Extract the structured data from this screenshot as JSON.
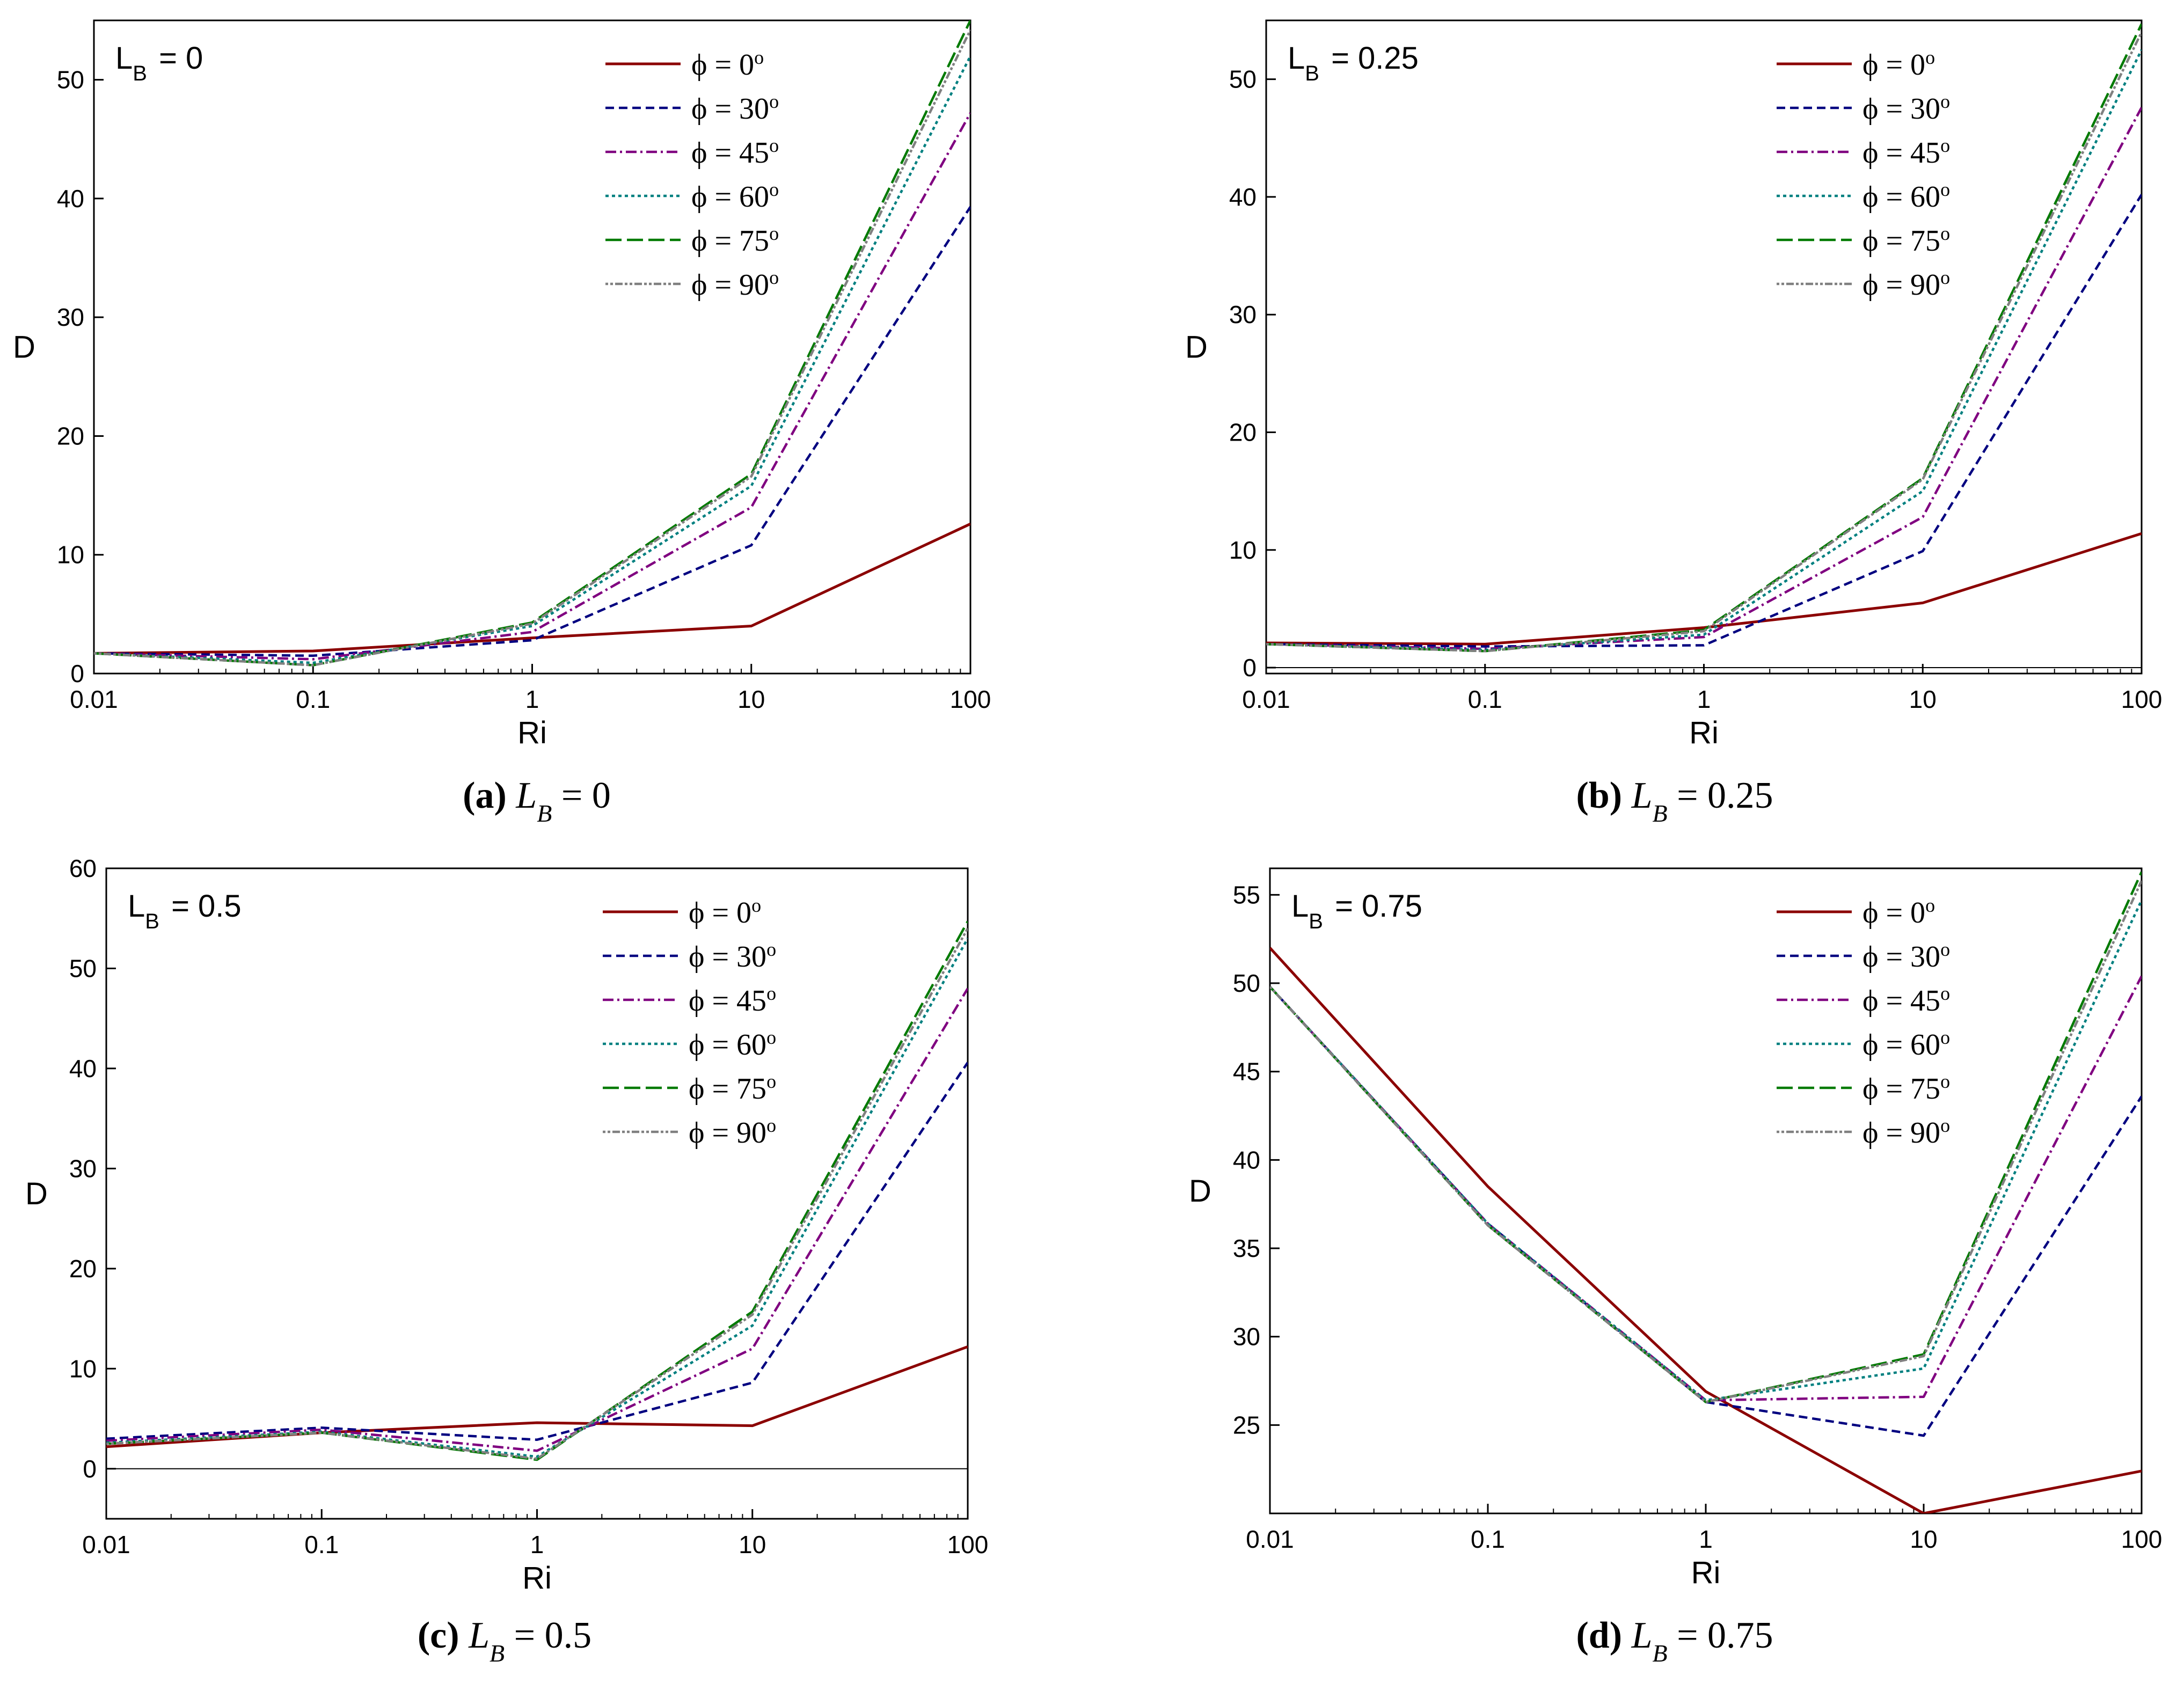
{
  "figure": {
    "series_style": [
      {
        "color": "#8b0000",
        "dash": ""
      },
      {
        "color": "#000080",
        "dash": "16,9"
      },
      {
        "color": "#800080",
        "dash": "20,7,4,7"
      },
      {
        "color": "#008080",
        "dash": "6,6"
      },
      {
        "color": "#007a00",
        "dash": "30,10"
      },
      {
        "color": "#808080",
        "dash": "5,4,5,4,14,4"
      }
    ]
  },
  "chart_data": [
    {
      "type": "line",
      "panel_tag_main": "L",
      "panel_tag_sub": "B",
      "panel_tag_value": "= 0",
      "caption_letter": "(a)",
      "caption_var": "L",
      "caption_sub": "B",
      "caption_value": "= 0",
      "xlabel": "Ri",
      "ylabel": "D",
      "xscale": "log",
      "x": [
        0.01,
        0.1,
        1,
        10,
        100
      ],
      "x_tick_labels": [
        "0.01",
        "0.1",
        "1",
        "10",
        "100"
      ],
      "ylim": [
        0,
        55
      ],
      "y_ticks": [
        0,
        10,
        20,
        30,
        40,
        50
      ],
      "y_tick_labels": [
        "0",
        "10",
        "20",
        "30",
        "40",
        "50"
      ],
      "legend_position": "top-right",
      "series": [
        {
          "name": "ϕ = 0°",
          "label_main": "ϕ = 0",
          "label_sup": "o",
          "values": [
            1.7,
            1.9,
            3.0,
            4.0,
            12.6
          ]
        },
        {
          "name": "ϕ = 30°",
          "label_main": "ϕ = 30",
          "label_sup": "o",
          "values": [
            1.7,
            1.5,
            2.8,
            10.8,
            39.3
          ]
        },
        {
          "name": "ϕ = 45°",
          "label_main": "ϕ = 45",
          "label_sup": "o",
          "values": [
            1.7,
            1.2,
            3.5,
            14.0,
            47.2
          ]
        },
        {
          "name": "ϕ = 60°",
          "label_main": "ϕ = 60",
          "label_sup": "o",
          "values": [
            1.7,
            0.9,
            4.0,
            15.8,
            52.0
          ]
        },
        {
          "name": "ϕ = 75°",
          "label_main": "ϕ = 75",
          "label_sup": "o",
          "values": [
            1.7,
            0.7,
            4.3,
            16.8,
            55.0
          ]
        },
        {
          "name": "ϕ = 90°",
          "label_main": "ϕ = 90",
          "label_sup": "o",
          "values": [
            1.7,
            0.7,
            4.2,
            16.6,
            54.2
          ]
        }
      ]
    },
    {
      "type": "line",
      "panel_tag_main": "L",
      "panel_tag_sub": "B",
      "panel_tag_value": "= 0.25",
      "caption_letter": "(b)",
      "caption_var": "L",
      "caption_sub": "B",
      "caption_value": "= 0.25",
      "xlabel": "Ri",
      "ylabel": "D",
      "xscale": "log",
      "x": [
        0.01,
        0.1,
        1,
        10,
        100
      ],
      "x_tick_labels": [
        "0.01",
        "0.1",
        "1",
        "10",
        "100"
      ],
      "ylim": [
        -0.5,
        55
      ],
      "y_ticks": [
        0,
        10,
        20,
        30,
        40,
        50
      ],
      "y_tick_labels": [
        "0",
        "10",
        "20",
        "30",
        "40",
        "50"
      ],
      "legend_position": "top-right",
      "series": [
        {
          "name": "ϕ = 0°",
          "label_main": "ϕ = 0",
          "label_sup": "o",
          "values": [
            2.1,
            2.0,
            3.4,
            5.5,
            11.4
          ]
        },
        {
          "name": "ϕ = 30°",
          "label_main": "ϕ = 30",
          "label_sup": "o",
          "values": [
            2.0,
            1.8,
            1.9,
            9.9,
            40.2
          ]
        },
        {
          "name": "ϕ = 45°",
          "label_main": "ϕ = 45",
          "label_sup": "o",
          "values": [
            2.0,
            1.6,
            2.6,
            12.8,
            47.6
          ]
        },
        {
          "name": "ϕ = 60°",
          "label_main": "ϕ = 60",
          "label_sup": "o",
          "values": [
            2.0,
            1.5,
            2.8,
            15.0,
            52.5
          ]
        },
        {
          "name": "ϕ = 75°",
          "label_main": "ϕ = 75",
          "label_sup": "o",
          "values": [
            2.0,
            1.4,
            3.2,
            16.1,
            54.7
          ]
        },
        {
          "name": "ϕ = 90°",
          "label_main": "ϕ = 90",
          "label_sup": "o",
          "values": [
            2.0,
            1.4,
            3.1,
            16.0,
            54.0
          ]
        }
      ]
    },
    {
      "type": "line",
      "panel_tag_main": "L",
      "panel_tag_sub": "B",
      "panel_tag_value": "= 0.5",
      "caption_letter": "(c)",
      "caption_var": "L",
      "caption_sub": "B",
      "caption_value": "= 0.5",
      "xlabel": "Ri",
      "ylabel": "D",
      "xscale": "log",
      "x": [
        0.01,
        0.1,
        1,
        10,
        100
      ],
      "x_tick_labels": [
        "0.01",
        "0.1",
        "1",
        "10",
        "100"
      ],
      "ylim": [
        -5,
        60
      ],
      "y_ticks": [
        0,
        10,
        20,
        30,
        40,
        50,
        60
      ],
      "y_tick_labels": [
        "0",
        "10",
        "20",
        "30",
        "40",
        "50",
        "60"
      ],
      "legend_position": "top-right",
      "series": [
        {
          "name": "ϕ = 0°",
          "label_main": "ϕ = 0",
          "label_sup": "o",
          "values": [
            2.2,
            3.6,
            4.6,
            4.3,
            12.2
          ]
        },
        {
          "name": "ϕ = 30°",
          "label_main": "ϕ = 30",
          "label_sup": "o",
          "values": [
            3.0,
            4.1,
            2.9,
            8.6,
            40.6
          ]
        },
        {
          "name": "ϕ = 45°",
          "label_main": "ϕ = 45",
          "label_sup": "o",
          "values": [
            2.8,
            3.9,
            1.8,
            12.0,
            48.0
          ]
        },
        {
          "name": "ϕ = 60°",
          "label_main": "ϕ = 60",
          "label_sup": "o",
          "values": [
            2.6,
            3.7,
            1.2,
            14.3,
            53.0
          ]
        },
        {
          "name": "ϕ = 75°",
          "label_main": "ϕ = 75",
          "label_sup": "o",
          "values": [
            2.5,
            3.6,
            0.9,
            15.7,
            54.7
          ]
        },
        {
          "name": "ϕ = 90°",
          "label_main": "ϕ = 90",
          "label_sup": "o",
          "values": [
            2.5,
            3.6,
            1.0,
            15.4,
            54.0
          ]
        }
      ]
    },
    {
      "type": "line",
      "panel_tag_main": "L",
      "panel_tag_sub": "B",
      "panel_tag_value": "= 0.75",
      "caption_letter": "(d)",
      "caption_var": "L",
      "caption_sub": "B",
      "caption_value": "= 0.75",
      "xlabel": "Ri",
      "ylabel": "D",
      "xscale": "log",
      "x": [
        0.01,
        0.1,
        1,
        10,
        100
      ],
      "x_tick_labels": [
        "0.01",
        "0.1",
        "1",
        "10",
        "100"
      ],
      "ylim": [
        20,
        56.5
      ],
      "y_ticks": [
        25,
        30,
        35,
        40,
        45,
        50,
        55
      ],
      "y_tick_labels": [
        "25",
        "30",
        "35",
        "40",
        "45",
        "50",
        "55"
      ],
      "legend_position": "top-right",
      "series": [
        {
          "name": "ϕ = 0°",
          "label_main": "ϕ = 0",
          "label_sup": "o",
          "values": [
            52.0,
            38.5,
            26.9,
            20.0,
            22.4
          ]
        },
        {
          "name": "ϕ = 30°",
          "label_main": "ϕ = 30",
          "label_sup": "o",
          "values": [
            49.8,
            36.4,
            26.3,
            24.4,
            43.6
          ]
        },
        {
          "name": "ϕ = 45°",
          "label_main": "ϕ = 45",
          "label_sup": "o",
          "values": [
            49.8,
            36.4,
            26.4,
            26.6,
            50.4
          ]
        },
        {
          "name": "ϕ = 60°",
          "label_main": "ϕ = 60",
          "label_sup": "o",
          "values": [
            49.8,
            36.4,
            26.4,
            28.2,
            54.7
          ]
        },
        {
          "name": "ϕ = 75°",
          "label_main": "ϕ = 75",
          "label_sup": "o",
          "values": [
            49.8,
            36.3,
            26.3,
            29.0,
            56.3
          ]
        },
        {
          "name": "ϕ = 90°",
          "label_main": "ϕ = 90",
          "label_sup": "o",
          "values": [
            49.8,
            36.3,
            26.3,
            28.9,
            55.8
          ]
        }
      ]
    }
  ]
}
